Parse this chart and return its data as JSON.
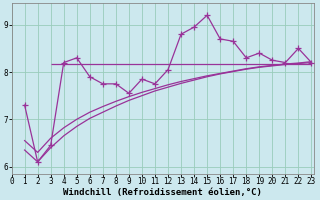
{
  "xlabel": "Windchill (Refroidissement éolien,°C)",
  "bg_color": "#cce8ee",
  "line_color": "#993399",
  "grid_color": "#99ccbb",
  "scatter_x": [
    1,
    2,
    3,
    4,
    5,
    6,
    7,
    8,
    9,
    10,
    11,
    12,
    13,
    14,
    15,
    16,
    17,
    18,
    19,
    20,
    21,
    22,
    23
  ],
  "scatter_y": [
    7.3,
    6.1,
    6.45,
    8.2,
    8.3,
    7.9,
    7.75,
    7.75,
    7.55,
    7.85,
    7.75,
    8.05,
    8.8,
    8.95,
    9.2,
    8.7,
    8.65,
    8.3,
    8.4,
    8.25,
    8.2,
    8.5,
    8.2
  ],
  "hline_y": 8.18,
  "hline_xstart": 3,
  "hline_xend": 23,
  "curve1_x": [
    1,
    2,
    3,
    4,
    5,
    6,
    7,
    8,
    9,
    10,
    11,
    12,
    13,
    14,
    15,
    16,
    17,
    18,
    19,
    20,
    21,
    22,
    23
  ],
  "curve1_y": [
    6.35,
    6.1,
    6.4,
    6.65,
    6.85,
    7.02,
    7.15,
    7.28,
    7.4,
    7.5,
    7.6,
    7.68,
    7.76,
    7.83,
    7.9,
    7.96,
    8.01,
    8.06,
    8.1,
    8.13,
    8.16,
    8.18,
    8.2
  ],
  "curve2_x": [
    1,
    2,
    3,
    4,
    5,
    6,
    7,
    8,
    9,
    10,
    11,
    12,
    13,
    14,
    15,
    16,
    17,
    18,
    19,
    20,
    21,
    22,
    23
  ],
  "curve2_y": [
    6.55,
    6.3,
    6.6,
    6.82,
    7.0,
    7.15,
    7.27,
    7.38,
    7.48,
    7.57,
    7.65,
    7.73,
    7.8,
    7.86,
    7.92,
    7.97,
    8.02,
    8.07,
    8.11,
    8.14,
    8.17,
    8.19,
    8.22
  ],
  "xlim": [
    0,
    23.2
  ],
  "ylim": [
    5.85,
    9.45
  ],
  "yticks": [
    6,
    7,
    8,
    9
  ],
  "xticks": [
    0,
    1,
    2,
    3,
    4,
    5,
    6,
    7,
    8,
    9,
    10,
    11,
    12,
    13,
    14,
    15,
    16,
    17,
    18,
    19,
    20,
    21,
    22,
    23
  ],
  "tick_fontsize": 5.5,
  "xlabel_fontsize": 6.5,
  "marker": "+",
  "markersize": 4,
  "linewidth": 0.9
}
